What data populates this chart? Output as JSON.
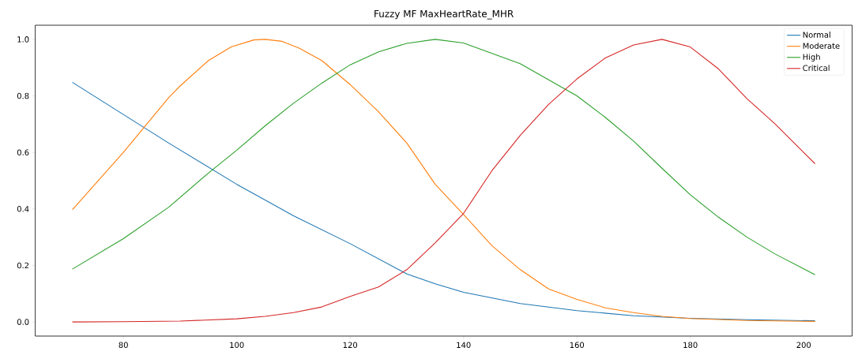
{
  "chart_data": {
    "type": "line",
    "title": "Fuzzy MF MaxHeartRate_MHR",
    "xlim": [
      64.45,
      208.55
    ],
    "ylim": [
      -0.05,
      1.05
    ],
    "xticks": [
      80,
      100,
      120,
      140,
      160,
      180,
      200
    ],
    "yticks": [
      {
        "value": 0,
        "label": "0.0"
      },
      {
        "value": 0.2,
        "label": "0.2"
      },
      {
        "value": 0.4,
        "label": "0.4"
      },
      {
        "value": 0.6,
        "label": "0.6"
      },
      {
        "value": 0.8,
        "label": "0.8"
      },
      {
        "value": 1,
        "label": "1.0"
      }
    ],
    "legend": "top right",
    "grid": false,
    "marker": "none",
    "line_style": "solid",
    "series": [
      {
        "name": "Normal",
        "color": "#1f77b4",
        "x": [
          71,
          88,
          100,
          110,
          120,
          130,
          135,
          140,
          150,
          160,
          170,
          180,
          190,
          202
        ],
        "values": [
          0.848,
          0.633,
          0.487,
          0.376,
          0.277,
          0.17,
          0.135,
          0.105,
          0.065,
          0.04,
          0.022,
          0.013,
          0.008,
          0.004
        ]
      },
      {
        "name": "Moderate",
        "color": "#ff7f0e",
        "x": [
          71,
          80,
          88,
          90,
          95,
          99,
          103,
          105,
          108,
          111,
          115,
          120,
          125,
          130,
          135,
          140,
          145,
          150,
          155,
          160,
          165,
          170,
          175,
          180,
          190,
          202
        ],
        "values": [
          0.397,
          0.6,
          0.794,
          0.835,
          0.925,
          0.973,
          0.998,
          1.0,
          0.993,
          0.969,
          0.925,
          0.84,
          0.744,
          0.633,
          0.487,
          0.38,
          0.27,
          0.185,
          0.117,
          0.08,
          0.05,
          0.033,
          0.02,
          0.012,
          0.005,
          0.002
        ]
      },
      {
        "name": "High",
        "color": "#2ca02c",
        "x": [
          71,
          80,
          88,
          95,
          100,
          105,
          110,
          115,
          120,
          125,
          130,
          135,
          140,
          150,
          160,
          165,
          170,
          175,
          180,
          185,
          190,
          195,
          202
        ],
        "values": [
          0.187,
          0.295,
          0.406,
          0.527,
          0.608,
          0.694,
          0.774,
          0.845,
          0.91,
          0.956,
          0.986,
          1.0,
          0.987,
          0.914,
          0.8,
          0.724,
          0.64,
          0.544,
          0.45,
          0.37,
          0.3,
          0.24,
          0.167
        ]
      },
      {
        "name": "Critical",
        "color": "#d62728",
        "x": [
          71,
          80,
          90,
          100,
          105,
          110,
          115,
          120,
          125,
          130,
          135,
          140,
          145,
          150,
          155,
          160,
          165,
          170,
          175,
          180,
          185,
          190,
          195,
          202
        ],
        "values": [
          0.0,
          0.001,
          0.003,
          0.011,
          0.02,
          0.033,
          0.053,
          0.09,
          0.124,
          0.185,
          0.28,
          0.384,
          0.535,
          0.66,
          0.77,
          0.86,
          0.934,
          0.98,
          1.0,
          0.973,
          0.895,
          0.79,
          0.7,
          0.56
        ]
      }
    ]
  }
}
